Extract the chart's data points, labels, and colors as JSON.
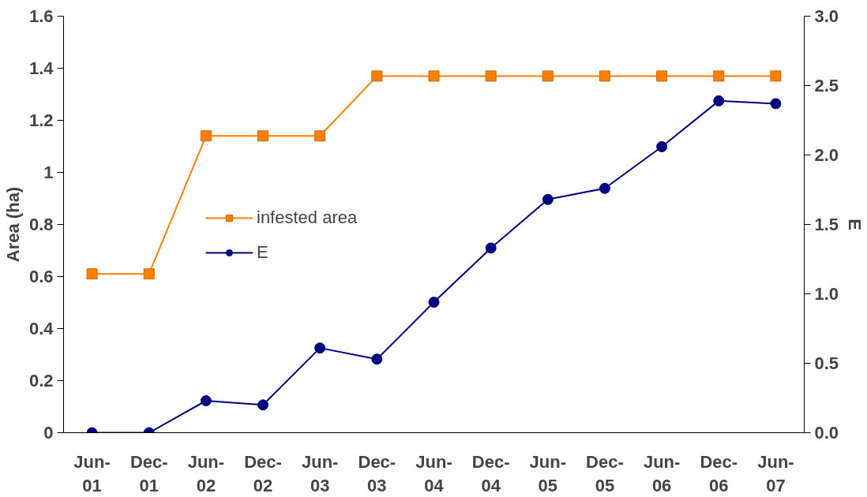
{
  "chart_data": {
    "type": "line",
    "xlabel": null,
    "ylabel": "Area (ha)",
    "y2label": "E",
    "categories": [
      "Jun-01",
      "Dec-01",
      "Jun-02",
      "Dec-02",
      "Jun-03",
      "Dec-03",
      "Jun-04",
      "Dec-04",
      "Jun-05",
      "Dec-05",
      "Jun-06",
      "Dec-06",
      "Jun-07"
    ],
    "series": [
      {
        "name": "infested area",
        "color": "#ff8000",
        "marker": "square",
        "values": [
          0.61,
          0.61,
          1.14,
          1.14,
          1.14,
          1.37,
          1.37,
          1.37,
          1.37,
          1.37,
          1.37,
          1.37,
          1.37
        ]
      },
      {
        "name": "E",
        "color": "#000080",
        "marker": "circle",
        "axis": "y2",
        "values": [
          0,
          0,
          0.23,
          0.2,
          0.61,
          0.53,
          0.94,
          1.33,
          1.68,
          1.76,
          2.06,
          2.39,
          2.37
        ]
      }
    ],
    "ylim": [
      0,
      1.6
    ],
    "yticks": [
      0,
      0.2,
      0.4,
      0.6,
      0.8,
      1,
      1.2,
      1.4,
      1.6
    ],
    "y2lim": [
      0,
      3.0
    ],
    "y2ticks": [
      {
        "value": 0,
        "label": "0.0"
      },
      {
        "value": 0.5,
        "label": "0.5"
      },
      {
        "value": 1,
        "label": "1.0"
      },
      {
        "value": 1.5,
        "label": "1.5"
      },
      {
        "value": 2,
        "label": "2.0"
      },
      {
        "value": 2.5,
        "label": "2.5"
      },
      {
        "value": 3,
        "label": "3.0"
      }
    ],
    "grid": false,
    "legend": "center",
    "line_style": "solid"
  }
}
